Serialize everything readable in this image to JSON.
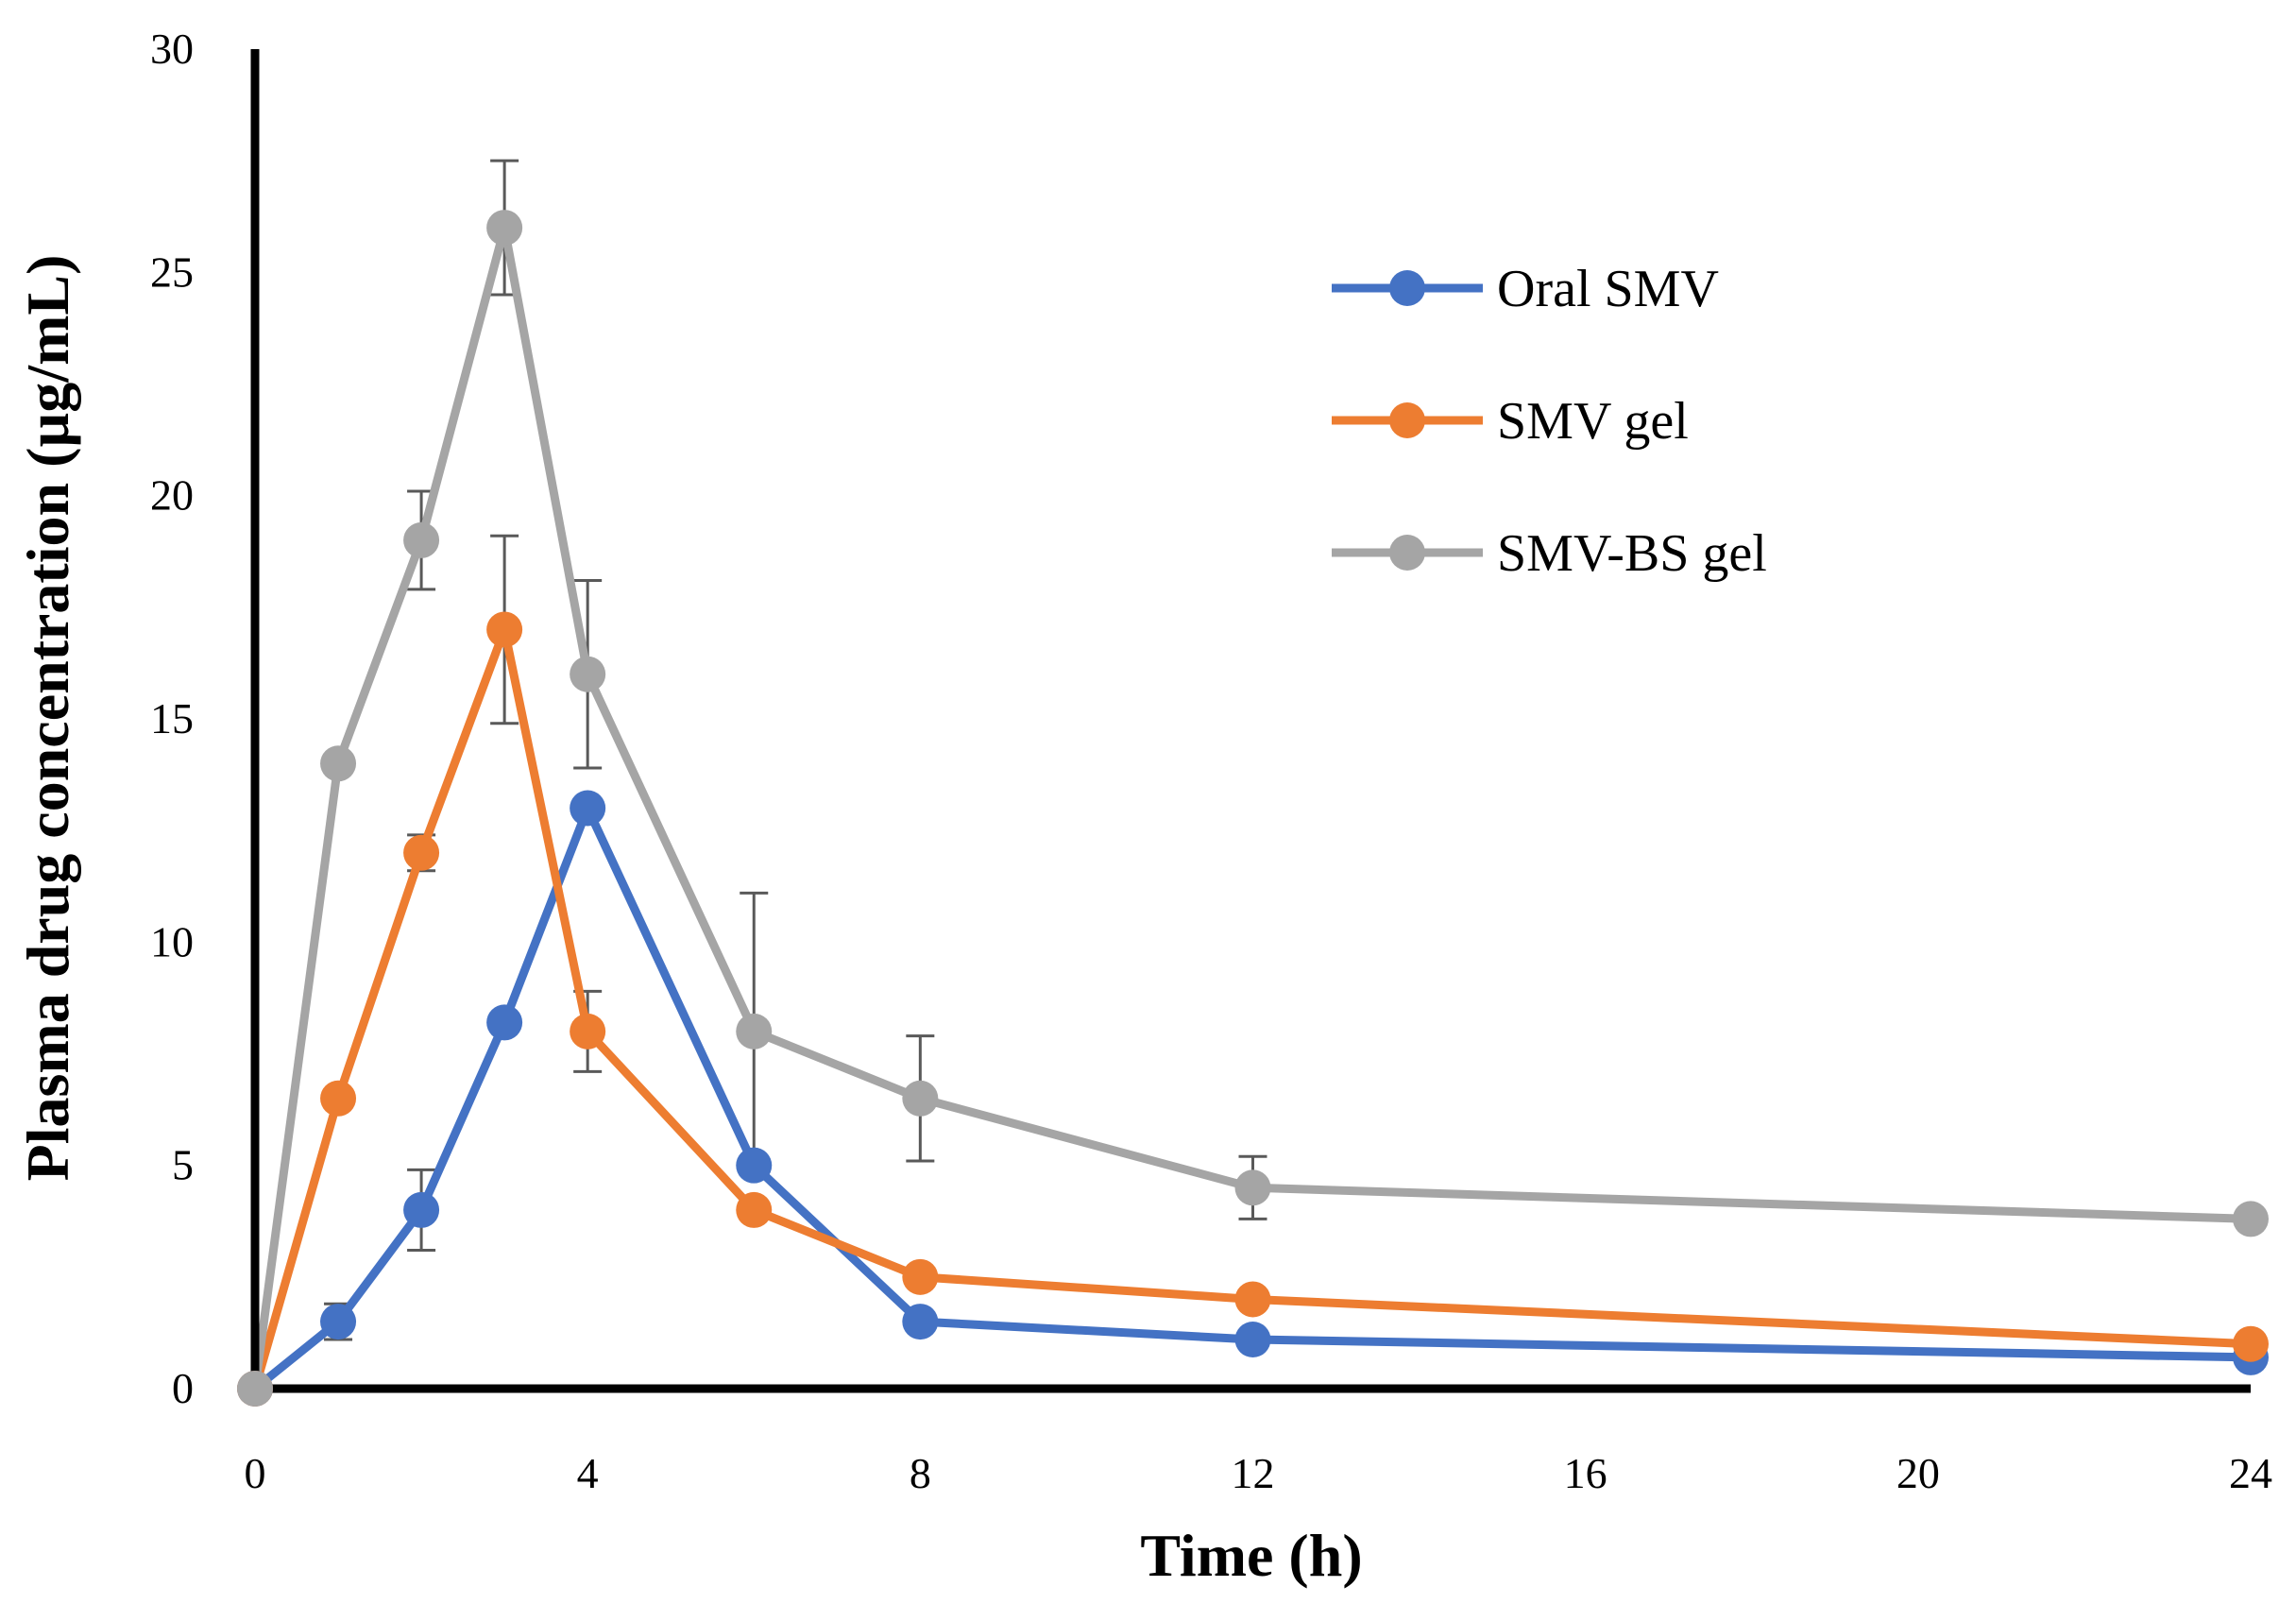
{
  "chart_data": {
    "type": "line",
    "title": "",
    "xlabel": "Time (h)",
    "ylabel": "Plasma drug concentration (µg/mL)",
    "xlim": [
      0,
      24
    ],
    "ylim": [
      0,
      30
    ],
    "x_ticks": [
      0,
      4,
      8,
      12,
      16,
      20,
      24
    ],
    "y_ticks": [
      0,
      5,
      10,
      15,
      20,
      25,
      30
    ],
    "grid": false,
    "legend_position": "top-right",
    "x": [
      0,
      1,
      2,
      3,
      4,
      6,
      8,
      12,
      24
    ],
    "series": [
      {
        "name": "Oral SMV",
        "color": "#4472C4",
        "values": [
          0,
          1.5,
          4.0,
          8.2,
          13.0,
          5.0,
          1.5,
          1.1,
          0.7
        ],
        "errors": [
          0,
          0.4,
          0.9,
          0,
          0,
          0,
          0,
          0,
          0
        ]
      },
      {
        "name": "SMV gel",
        "color": "#ED7D31",
        "values": [
          0,
          6.5,
          12.0,
          17.0,
          8.0,
          4.0,
          2.5,
          2.0,
          1.0
        ],
        "errors": [
          0,
          0,
          0.4,
          2.1,
          0.9,
          0,
          0,
          0,
          0
        ]
      },
      {
        "name": "SMV-BS gel",
        "color": "#A5A5A5",
        "values": [
          0,
          14.0,
          19.0,
          26.0,
          16.0,
          8.0,
          6.5,
          4.5,
          3.8
        ],
        "errors": [
          0,
          0,
          1.1,
          1.5,
          2.1,
          3.1,
          1.4,
          0.7,
          0
        ]
      }
    ]
  }
}
